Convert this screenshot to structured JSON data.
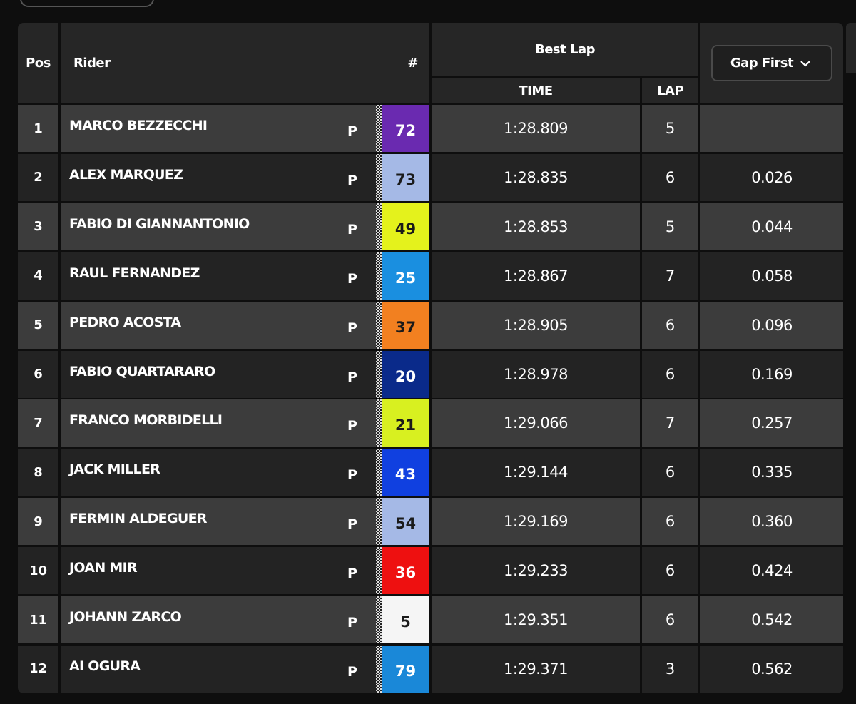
{
  "header": {
    "pos": "Pos",
    "rider": "Rider",
    "number": "#",
    "best_lap": "Best Lap",
    "time": "TIME",
    "lap": "LAP",
    "gap": "Gap First"
  },
  "table": {
    "rows": [
      {
        "pos": "1",
        "rider": "MARCO BEZZECCHI",
        "flag": "P",
        "number": "72",
        "color": "#6a2ab0",
        "text_color": "#ffffff",
        "time": "1:28.809",
        "lap": "5",
        "gap": null
      },
      {
        "pos": "2",
        "rider": "ALEX MARQUEZ",
        "flag": "P",
        "number": "73",
        "color": "#a5b9e6",
        "text_color": "#1a1a1a",
        "time": "1:28.835",
        "lap": "6",
        "gap": "0.026"
      },
      {
        "pos": "3",
        "rider": "FABIO DI GIANNANTONIO",
        "flag": "P",
        "number": "49",
        "color": "#e4f21c",
        "text_color": "#1a1a1a",
        "time": "1:28.853",
        "lap": "5",
        "gap": "0.044"
      },
      {
        "pos": "4",
        "rider": "RAUL FERNANDEZ",
        "flag": "P",
        "number": "25",
        "color": "#1a8fe0",
        "text_color": "#ffffff",
        "time": "1:28.867",
        "lap": "7",
        "gap": "0.058"
      },
      {
        "pos": "5",
        "rider": "PEDRO ACOSTA",
        "flag": "P",
        "number": "37",
        "color": "#f28020",
        "text_color": "#1a1a1a",
        "time": "1:28.905",
        "lap": "6",
        "gap": "0.096"
      },
      {
        "pos": "6",
        "rider": "FABIO QUARTARARO",
        "flag": "P",
        "number": "20",
        "color": "#0a2a8a",
        "text_color": "#ffffff",
        "time": "1:28.978",
        "lap": "6",
        "gap": "0.169"
      },
      {
        "pos": "7",
        "rider": "FRANCO MORBIDELLI",
        "flag": "P",
        "number": "21",
        "color": "#d8f020",
        "text_color": "#1a1a1a",
        "time": "1:29.066",
        "lap": "7",
        "gap": "0.257"
      },
      {
        "pos": "8",
        "rider": "JACK MILLER",
        "flag": "P",
        "number": "43",
        "color": "#1040e0",
        "text_color": "#ffffff",
        "time": "1:29.144",
        "lap": "6",
        "gap": "0.335"
      },
      {
        "pos": "9",
        "rider": "FERMIN ALDEGUER",
        "flag": "P",
        "number": "54",
        "color": "#a5b9e6",
        "text_color": "#1a1a1a",
        "time": "1:29.169",
        "lap": "6",
        "gap": "0.360"
      },
      {
        "pos": "10",
        "rider": "JOAN MIR",
        "flag": "P",
        "number": "36",
        "color": "#ee1010",
        "text_color": "#ffffff",
        "time": "1:29.233",
        "lap": "6",
        "gap": "0.424"
      },
      {
        "pos": "11",
        "rider": "JOHANN ZARCO",
        "flag": "P",
        "number": "5",
        "color": "#f5f5f5",
        "text_color": "#1a1a1a",
        "time": "1:29.351",
        "lap": "6",
        "gap": "0.542"
      },
      {
        "pos": "12",
        "rider": "AI OGURA",
        "flag": "P",
        "number": "79",
        "color": "#1a88d8",
        "text_color": "#ffffff",
        "time": "1:29.371",
        "lap": "3",
        "gap": "0.562"
      }
    ]
  }
}
